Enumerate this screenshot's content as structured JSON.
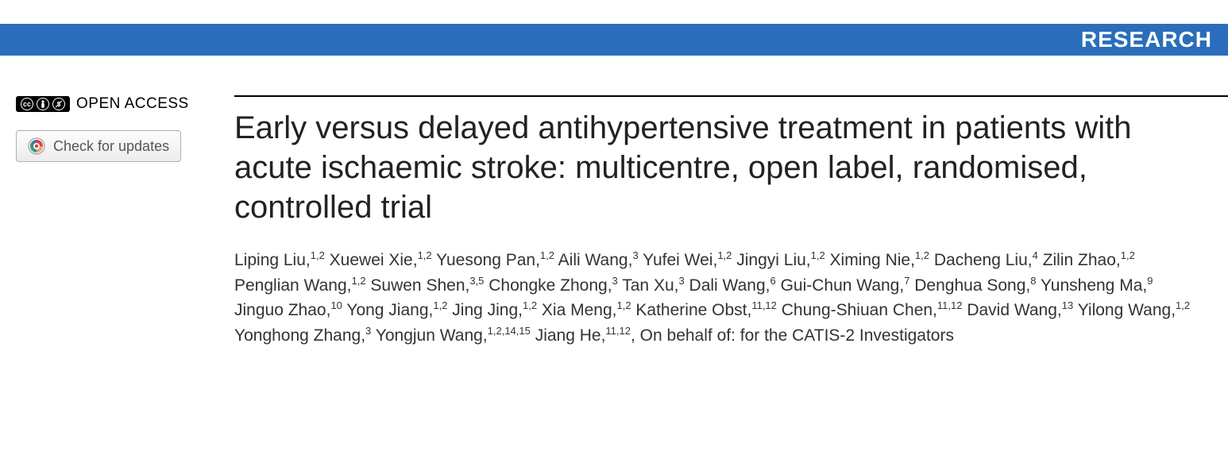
{
  "banner": {
    "label": "RESEARCH",
    "bg": "#2a6ebb"
  },
  "sidebar": {
    "cc_text": "cc",
    "open_access_label": "OPEN ACCESS",
    "updates_label": "Check for updates"
  },
  "article": {
    "title": "Early versus delayed antihypertensive treatment in patients with acute ischaemic stroke: multicentre, open label, randomised, controlled trial",
    "authors": [
      {
        "name": "Liping Liu",
        "aff": "1,2"
      },
      {
        "name": "Xuewei Xie",
        "aff": "1,2"
      },
      {
        "name": "Yuesong Pan",
        "aff": "1,2"
      },
      {
        "name": "Aili Wang",
        "aff": "3"
      },
      {
        "name": "Yufei Wei",
        "aff": "1,2"
      },
      {
        "name": "Jingyi Liu",
        "aff": "1,2"
      },
      {
        "name": "Ximing Nie",
        "aff": "1,2"
      },
      {
        "name": "Dacheng Liu",
        "aff": "4"
      },
      {
        "name": "Zilin Zhao",
        "aff": "1,2"
      },
      {
        "name": "Penglian Wang",
        "aff": "1,2"
      },
      {
        "name": "Suwen Shen",
        "aff": "3,5"
      },
      {
        "name": "Chongke Zhong",
        "aff": "3"
      },
      {
        "name": "Tan Xu",
        "aff": "3"
      },
      {
        "name": "Dali Wang",
        "aff": "6"
      },
      {
        "name": "Gui-Chun Wang",
        "aff": "7"
      },
      {
        "name": "Denghua Song",
        "aff": "8"
      },
      {
        "name": "Yunsheng Ma",
        "aff": "9"
      },
      {
        "name": "Jinguo Zhao",
        "aff": "10"
      },
      {
        "name": "Yong Jiang",
        "aff": "1,2"
      },
      {
        "name": "Jing Jing",
        "aff": "1,2"
      },
      {
        "name": "Xia Meng",
        "aff": "1,2"
      },
      {
        "name": "Katherine Obst",
        "aff": "11,12"
      },
      {
        "name": "Chung-Shiuan Chen",
        "aff": "11,12"
      },
      {
        "name": "David Wang",
        "aff": "13"
      },
      {
        "name": "Yilong Wang",
        "aff": "1,2"
      },
      {
        "name": "Yonghong Zhang",
        "aff": "3"
      },
      {
        "name": "Yongjun Wang",
        "aff": "1,2,14,15"
      },
      {
        "name": "Jiang He",
        "aff": "11,12"
      }
    ],
    "on_behalf": "On behalf of: for the CATIS-2 Investigators"
  }
}
